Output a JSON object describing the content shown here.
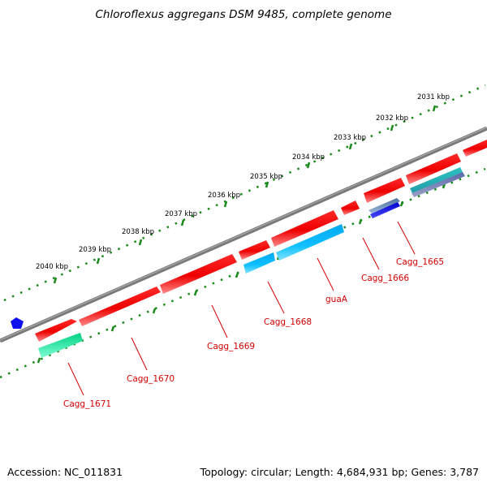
{
  "title": "Chloroflexus aggregans DSM 9485, complete genome",
  "footer": {
    "accession": "Accession: NC_011831",
    "summary": "Topology: circular; Length: 4,684,931 bp; Genes: 3,787"
  },
  "colors": {
    "backbone": "#808080",
    "ruler": "#1a8a1a",
    "cds_forward": "#ff0000",
    "cds_reverse_cyan": "#00bfff",
    "cds_reverse_blue": "#1010e0",
    "cds_reverse_teal": "#20e0a0",
    "cds_reverse_steel": "#5a7fb0",
    "label": "#d40000"
  },
  "ruler": {
    "ticks": [
      {
        "label": "2031 kbp",
        "position_kbp": 2031
      },
      {
        "label": "2032 kbp",
        "position_kbp": 2032
      },
      {
        "label": "2033 kbp",
        "position_kbp": 2033
      },
      {
        "label": "2034 kbp",
        "position_kbp": 2034
      },
      {
        "label": "2035 kbp",
        "position_kbp": 2035
      },
      {
        "label": "2036 kbp",
        "position_kbp": 2036
      },
      {
        "label": "2037 kbp",
        "position_kbp": 2037
      },
      {
        "label": "2038 kbp",
        "position_kbp": 2038
      },
      {
        "label": "2039 kbp",
        "position_kbp": 2039
      },
      {
        "label": "2040 kbp",
        "position_kbp": 2040
      }
    ]
  },
  "gene_labels": [
    {
      "name": "Cagg_1665"
    },
    {
      "name": "Cagg_1666"
    },
    {
      "name": "guaA"
    },
    {
      "name": "Cagg_1668"
    },
    {
      "name": "Cagg_1669"
    },
    {
      "name": "Cagg_1670"
    },
    {
      "name": "Cagg_1671"
    }
  ]
}
